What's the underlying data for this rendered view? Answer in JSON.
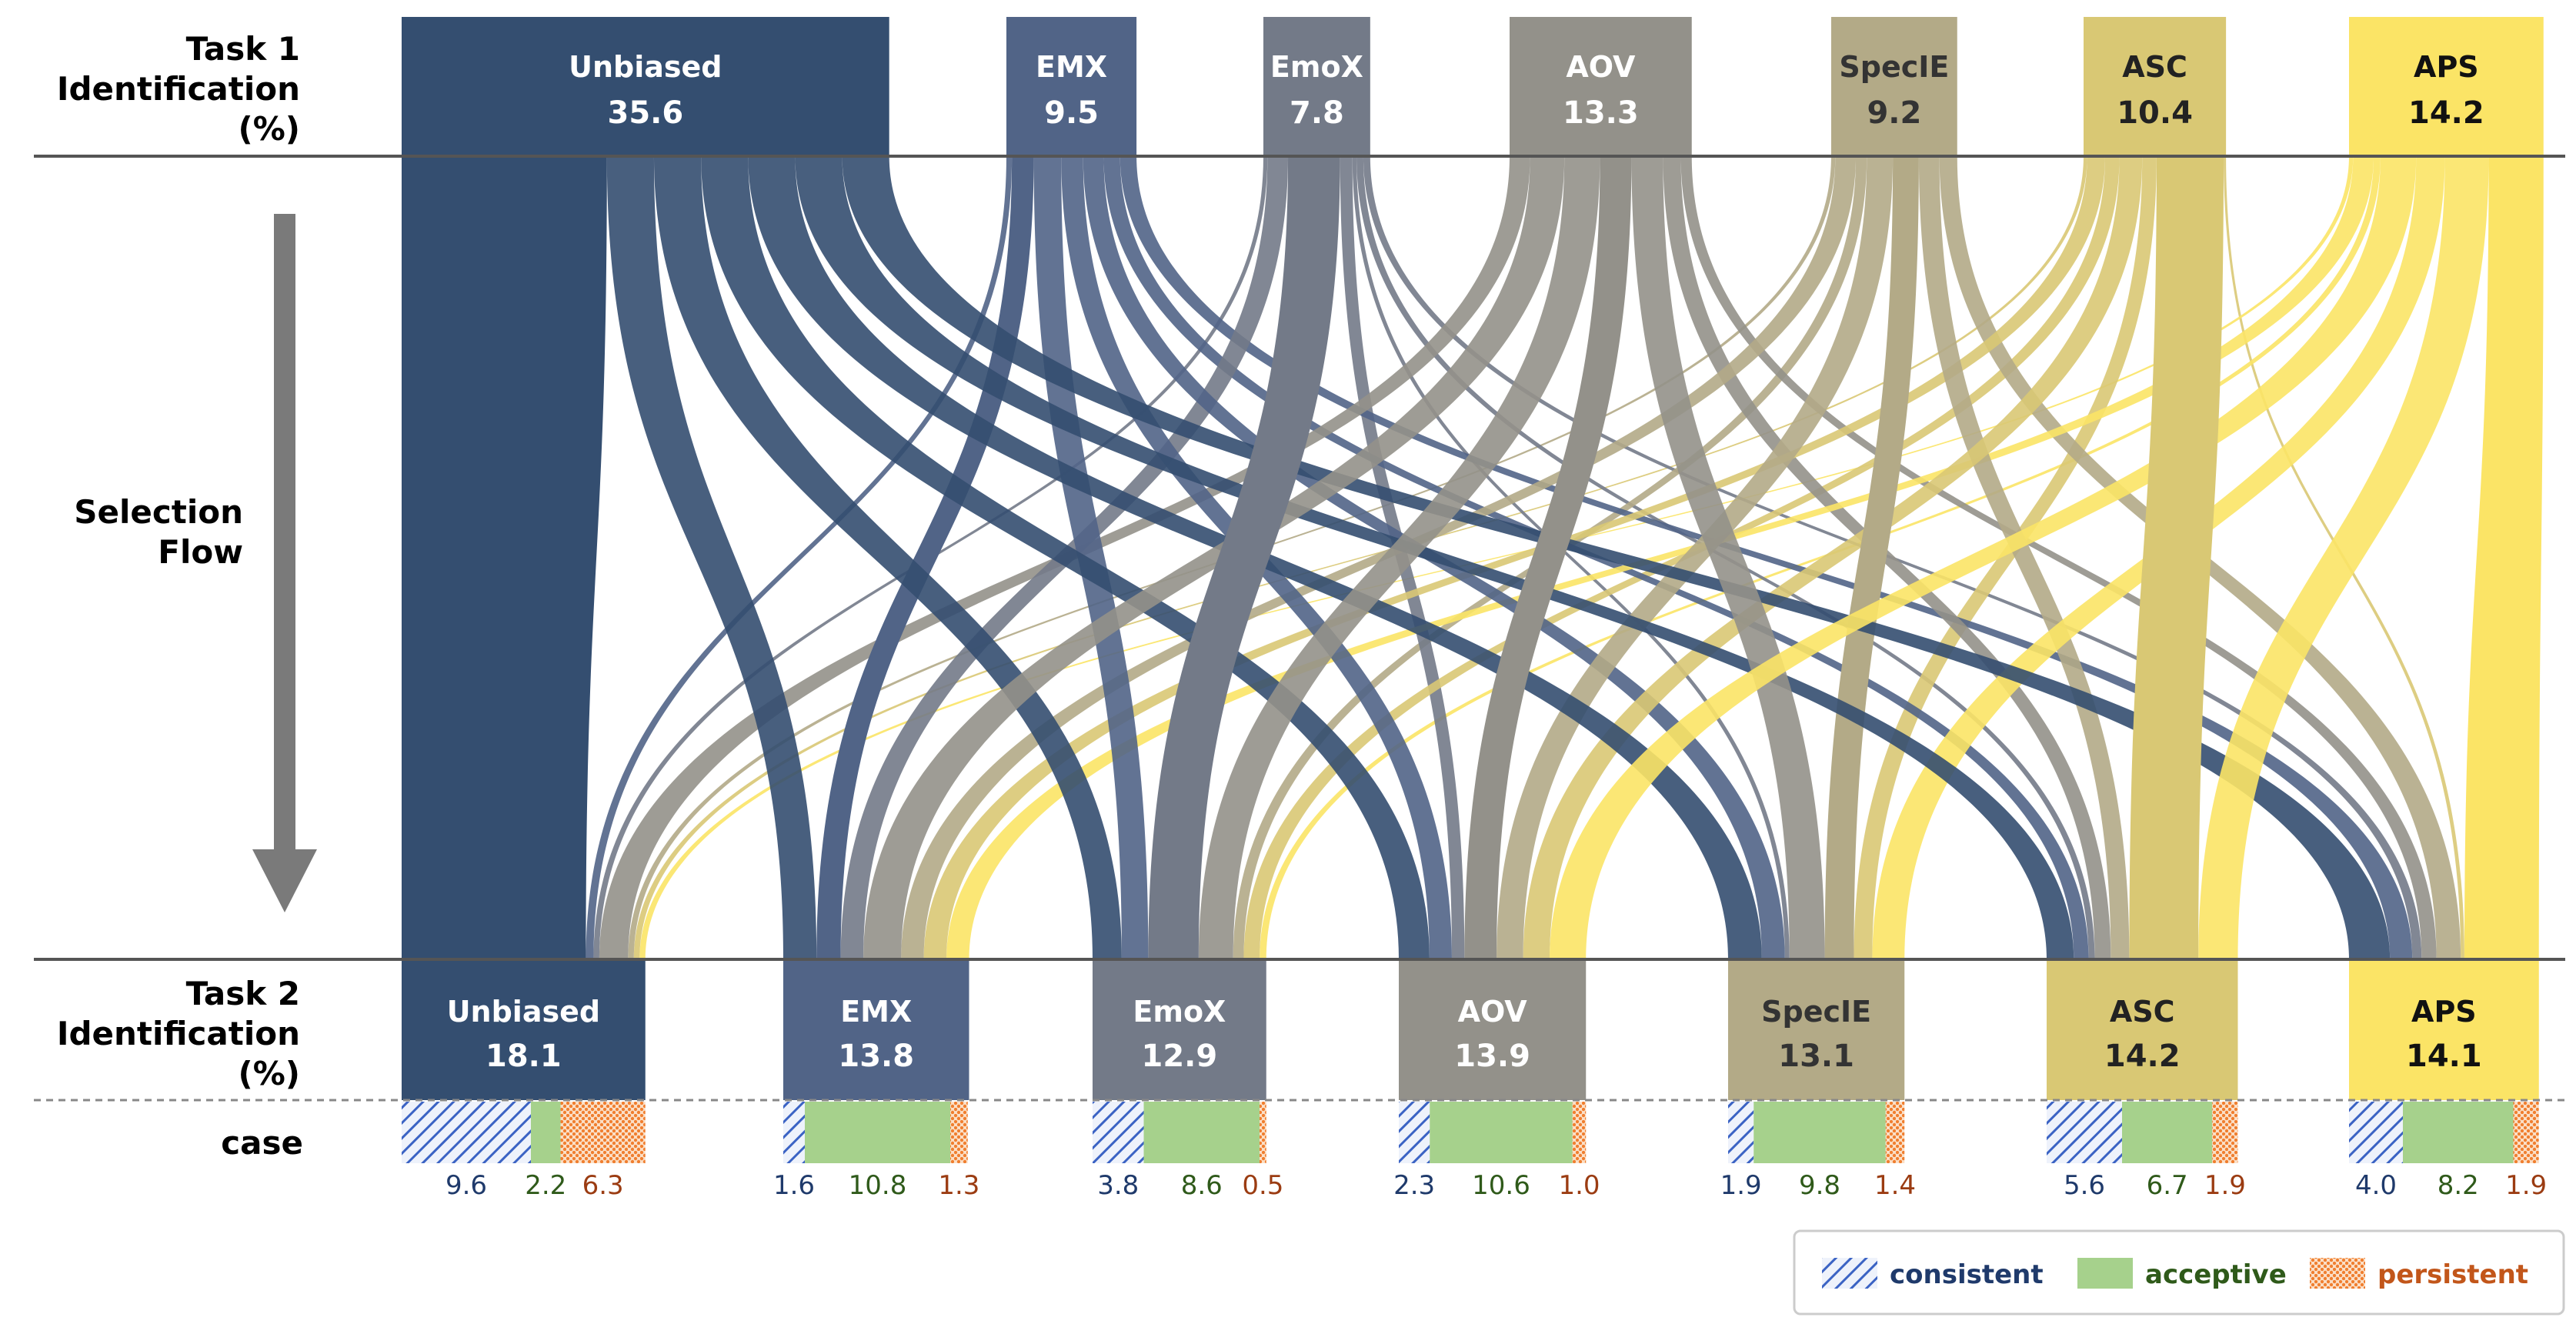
{
  "row_labels": {
    "task1": [
      "Task 1",
      "Identification",
      "(%)"
    ],
    "flow": [
      "Selection",
      "Flow"
    ],
    "task2": [
      "Task 2",
      "Identification",
      "(%)"
    ],
    "case": "case"
  },
  "chart_data": {
    "type": "sankey",
    "categories": [
      "Unbiased",
      "EMX",
      "EmoX",
      "AOV",
      "SpecIE",
      "ASC",
      "APS"
    ],
    "colors": [
      "#344e70",
      "#516487",
      "#737a88",
      "#93918a",
      "#b3aa87",
      "#d9c874",
      "#fbe466"
    ],
    "label_colors": [
      "#ffffff",
      "#ffffff",
      "#ffffff",
      "#ffffff",
      "#333333",
      "#222222",
      "#111111"
    ],
    "task1_values": [
      "35.6",
      "9.5",
      "7.8",
      "13.3",
      "9.2",
      "10.4",
      "14.2"
    ],
    "task2_values": [
      "18.1",
      "13.8",
      "12.9",
      "13.9",
      "13.1",
      "14.2",
      "14.1"
    ],
    "case_breakdown": [
      {
        "consistent": "9.6",
        "acceptive": "2.2",
        "persistent": "6.3"
      },
      {
        "consistent": "1.6",
        "acceptive": "10.8",
        "persistent": "1.3"
      },
      {
        "consistent": "3.8",
        "acceptive": "8.6",
        "persistent": "0.5"
      },
      {
        "consistent": "2.3",
        "acceptive": "10.6",
        "persistent": "1.0"
      },
      {
        "consistent": "1.9",
        "acceptive": "9.8",
        "persistent": "1.4"
      },
      {
        "consistent": "5.6",
        "acceptive": "6.7",
        "persistent": "1.9"
      },
      {
        "consistent": "4.0",
        "acceptive": "8.2",
        "persistent": "1.9"
      }
    ],
    "flows": [
      [
        9.6,
        2.2,
        2.2,
        2.2,
        2.2,
        2.2,
        2.2
      ],
      [
        0.4,
        1.6,
        2.0,
        1.6,
        1.5,
        1.2,
        1.2
      ],
      [
        0.3,
        1.5,
        3.8,
        0.9,
        0.3,
        0.5,
        0.5
      ],
      [
        1.5,
        2.5,
        2.6,
        2.3,
        2.3,
        1.3,
        0.8
      ],
      [
        0.3,
        1.5,
        0.8,
        1.9,
        1.9,
        1.5,
        1.3
      ],
      [
        0.3,
        1.5,
        1.2,
        1.9,
        1.2,
        5.6,
        0.2
      ],
      [
        0.3,
        1.5,
        0.5,
        2.6,
        2.1,
        3.2,
        4.0
      ]
    ],
    "legend": [
      {
        "key": "consistent",
        "label": "consistent",
        "color": "#1f3a6b"
      },
      {
        "key": "acceptive",
        "label": "acceptive",
        "color": "#2f5a1a"
      },
      {
        "key": "persistent",
        "label": "persistent",
        "color": "#c2561a"
      }
    ],
    "case_colors": {
      "consistent": "#3b63c4",
      "acceptive": "#a6d18c",
      "persistent": "#f07f30"
    },
    "case_text_colors": {
      "consistent": "#1f3a6b",
      "acceptive": "#2f5a1a",
      "persistent": "#9b3c12"
    }
  }
}
